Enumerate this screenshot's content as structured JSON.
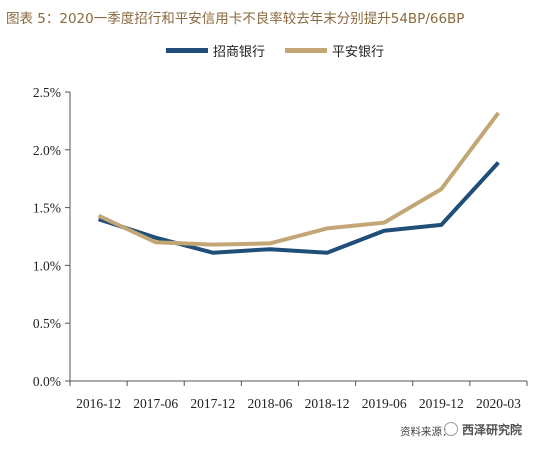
{
  "chart_data": {
    "type": "line",
    "title": "图表 5：2020一季度招行和平安信用卡不良率较去年末分别提升54BP/66BP",
    "categories": [
      "2016-12",
      "2017-06",
      "2017-12",
      "2018-06",
      "2018-12",
      "2019-06",
      "2019-12",
      "2020-03"
    ],
    "series": [
      {
        "name": "招商银行",
        "color": "#1f4e79",
        "values": [
          1.4,
          1.24,
          1.11,
          1.14,
          1.11,
          1.3,
          1.35,
          1.89
        ]
      },
      {
        "name": "平安银行",
        "color": "#c2a676",
        "values": [
          1.43,
          1.2,
          1.18,
          1.19,
          1.32,
          1.37,
          1.66,
          2.32
        ]
      }
    ],
    "ylim": [
      0,
      2.5
    ],
    "yticks": [
      "0.0%",
      "0.5%",
      "1.0%",
      "1.5%",
      "2.0%",
      "2.5%"
    ],
    "ytick_values": [
      0,
      0.5,
      1.0,
      1.5,
      2.0,
      2.5
    ],
    "legend_position": "top",
    "grid": false
  },
  "source": {
    "label": "资料来源：",
    "watermark": "西泽研究院"
  },
  "colors": {
    "title": "#8a6a3e",
    "axis": "#555555"
  }
}
